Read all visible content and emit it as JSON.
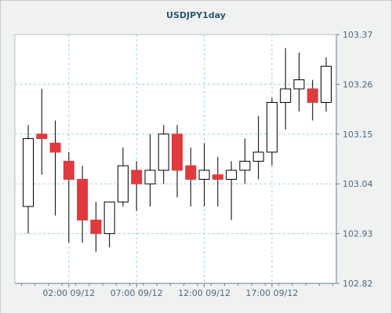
{
  "chart_data": {
    "type": "candlestick",
    "title": "USDJPY1day",
    "xlabel": "",
    "ylabel": "",
    "y_axis_position": "right",
    "ylim": [
      102.82,
      103.37
    ],
    "y_ticks": [
      "103.37",
      "103.26",
      "103.15",
      "103.04",
      "102.93",
      "102.82"
    ],
    "x_ticks": [
      "02:00 09/12",
      "07:00 09/12",
      "12:00 09/12",
      "17:00 09/12"
    ],
    "grid": true,
    "colors": {
      "up_body": "#ffffff",
      "down_body": "#e03a3e",
      "wick": "#000000",
      "grid": "#9fd3d8"
    },
    "candles": [
      {
        "o": 102.99,
        "h": 103.17,
        "l": 102.93,
        "c": 103.14
      },
      {
        "o": 103.15,
        "h": 103.25,
        "l": 103.06,
        "c": 103.14
      },
      {
        "o": 103.13,
        "h": 103.18,
        "l": 102.97,
        "c": 103.11
      },
      {
        "o": 103.09,
        "h": 103.11,
        "l": 102.91,
        "c": 103.05
      },
      {
        "o": 103.05,
        "h": 103.08,
        "l": 102.91,
        "c": 102.96
      },
      {
        "o": 102.96,
        "h": 103.0,
        "l": 102.89,
        "c": 102.93
      },
      {
        "o": 102.93,
        "h": 103.0,
        "l": 102.9,
        "c": 103.0
      },
      {
        "o": 103.0,
        "h": 103.12,
        "l": 102.99,
        "c": 103.08
      },
      {
        "o": 103.07,
        "h": 103.09,
        "l": 102.98,
        "c": 103.04
      },
      {
        "o": 103.04,
        "h": 103.15,
        "l": 102.99,
        "c": 103.07
      },
      {
        "o": 103.07,
        "h": 103.17,
        "l": 103.04,
        "c": 103.15
      },
      {
        "o": 103.15,
        "h": 103.17,
        "l": 103.01,
        "c": 103.07
      },
      {
        "o": 103.08,
        "h": 103.12,
        "l": 102.99,
        "c": 103.05
      },
      {
        "o": 103.05,
        "h": 103.13,
        "l": 102.99,
        "c": 103.07
      },
      {
        "o": 103.06,
        "h": 103.1,
        "l": 102.99,
        "c": 103.05
      },
      {
        "o": 103.05,
        "h": 103.09,
        "l": 102.96,
        "c": 103.07
      },
      {
        "o": 103.07,
        "h": 103.14,
        "l": 103.04,
        "c": 103.09
      },
      {
        "o": 103.09,
        "h": 103.19,
        "l": 103.05,
        "c": 103.11
      },
      {
        "o": 103.11,
        "h": 103.23,
        "l": 103.08,
        "c": 103.22
      },
      {
        "o": 103.22,
        "h": 103.34,
        "l": 103.16,
        "c": 103.25
      },
      {
        "o": 103.25,
        "h": 103.33,
        "l": 103.2,
        "c": 103.27
      },
      {
        "o": 103.25,
        "h": 103.27,
        "l": 103.18,
        "c": 103.22
      },
      {
        "o": 103.22,
        "h": 103.32,
        "l": 103.2,
        "c": 103.3
      }
    ]
  }
}
